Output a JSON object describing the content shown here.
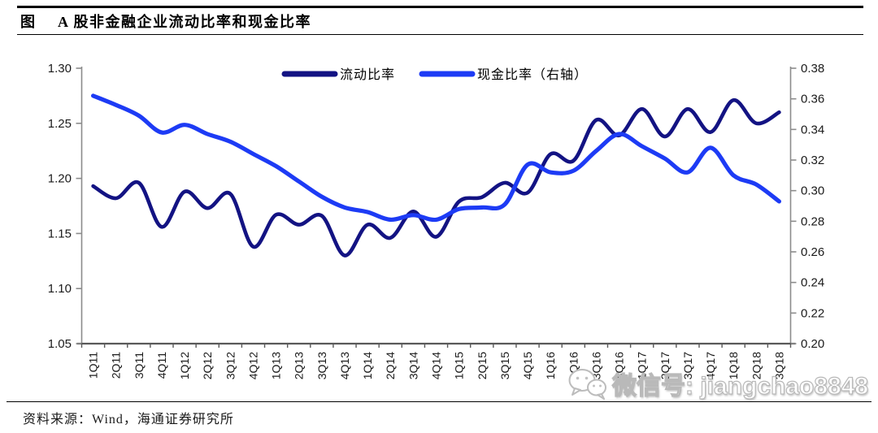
{
  "header": {
    "figure_label": "图",
    "title": "A 股非金融企业流动比率和现金比率"
  },
  "chart_data": {
    "type": "line",
    "title": "A股非金融企业流动比率和现金比率",
    "grid": false,
    "legend_position": "top-center",
    "categories": [
      "1Q11",
      "2Q11",
      "3Q11",
      "4Q11",
      "1Q12",
      "2Q12",
      "3Q12",
      "4Q12",
      "1Q13",
      "2Q13",
      "3Q13",
      "4Q13",
      "1Q14",
      "2Q14",
      "3Q14",
      "4Q14",
      "1Q15",
      "2Q15",
      "3Q15",
      "4Q15",
      "1Q16",
      "2Q16",
      "3Q16",
      "4Q16",
      "1Q17",
      "2Q17",
      "3Q17",
      "4Q17",
      "1Q18",
      "2Q18",
      "3Q18"
    ],
    "series": [
      {
        "name": "流动比率",
        "axis": "left",
        "color": "#131383",
        "values": [
          1.193,
          1.182,
          1.196,
          1.156,
          1.188,
          1.173,
          1.186,
          1.138,
          1.167,
          1.158,
          1.166,
          1.13,
          1.158,
          1.146,
          1.17,
          1.147,
          1.179,
          1.183,
          1.196,
          1.187,
          1.222,
          1.216,
          1.253,
          1.239,
          1.263,
          1.238,
          1.263,
          1.242,
          1.271,
          1.25,
          1.26
        ]
      },
      {
        "name": "现金比率（右轴）",
        "axis": "right",
        "color": "#1d3bf5",
        "values": [
          0.362,
          0.356,
          0.349,
          0.338,
          0.343,
          0.337,
          0.332,
          0.324,
          0.316,
          0.306,
          0.296,
          0.289,
          0.286,
          0.281,
          0.284,
          0.281,
          0.288,
          0.289,
          0.291,
          0.317,
          0.312,
          0.313,
          0.326,
          0.337,
          0.329,
          0.321,
          0.312,
          0.328,
          0.31,
          0.304,
          0.293
        ]
      }
    ],
    "left_axis": {
      "min": 1.05,
      "max": 1.3,
      "step": 0.05,
      "ticks": [
        "1.30",
        "1.25",
        "1.20",
        "1.15",
        "1.10",
        "1.05"
      ]
    },
    "right_axis": {
      "min": 0.2,
      "max": 0.38,
      "step": 0.02,
      "ticks": [
        "0.38",
        "0.36",
        "0.34",
        "0.32",
        "0.30",
        "0.28",
        "0.26",
        "0.24",
        "0.22",
        "0.20"
      ]
    }
  },
  "watermark": {
    "icon": "wechat-icon",
    "text": "微信号: jiangchao8848"
  },
  "footer": {
    "source": "资料来源：Wind，海通证券研究所"
  },
  "colors": {
    "axis_line": "#8c8c8c",
    "bottom_axis": "#595959",
    "tick_text": "#1a1a1a"
  }
}
